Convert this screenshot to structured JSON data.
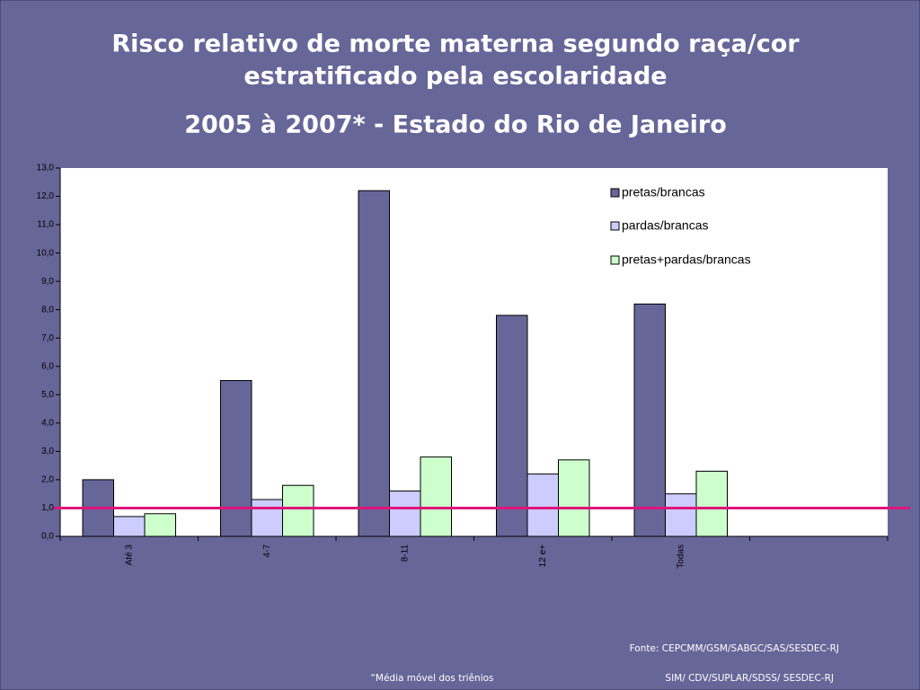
{
  "chart_data": {
    "type": "bar",
    "title": [
      "Risco relativo de morte materna segundo raça/cor",
      "estratificado pela escolaridade"
    ],
    "subtitle": "2005 à 2007* - Estado do Rio de Janeiro",
    "categories": [
      "Até 3",
      "4-7",
      "8-11",
      "12 e+",
      "Todas",
      null
    ],
    "series": [
      {
        "name": "pretas/brancas",
        "color": "#666699",
        "values": [
          2.0,
          5.5,
          12.2,
          7.8,
          8.2,
          null
        ]
      },
      {
        "name": "pardas/brancas",
        "color": "#ccccff",
        "values": [
          0.7,
          1.3,
          1.6,
          2.2,
          1.5,
          null
        ]
      },
      {
        "name": "pretas+pardas/brancas",
        "color": "#ccffcc",
        "values": [
          0.8,
          1.8,
          2.8,
          2.7,
          2.3,
          null
        ]
      }
    ],
    "reference_line": {
      "value": 1.0,
      "color": "#e0157a"
    },
    "ylim": [
      0,
      13
    ],
    "yticks": [
      {
        "value": 0,
        "label": "0,0"
      },
      {
        "value": 1,
        "label": "1,0"
      },
      {
        "value": 2,
        "label": "2,0"
      },
      {
        "value": 3,
        "label": "3,0"
      },
      {
        "value": 4,
        "label": "4,0"
      },
      {
        "value": 5,
        "label": "5,0"
      },
      {
        "value": 6,
        "label": "6,0"
      },
      {
        "value": 7,
        "label": "7,0"
      },
      {
        "value": 8,
        "label": "8,0"
      },
      {
        "value": 9,
        "label": "9,0"
      },
      {
        "value": 10,
        "label": "10,0"
      },
      {
        "value": 11,
        "label": "11,0"
      },
      {
        "value": 12,
        "label": "12,0"
      },
      {
        "value": 13,
        "label": "13,0"
      }
    ],
    "grid": false,
    "legend": "top-right",
    "source": "Fonte: CEPCMM/GSM/SABGC/SAS/SESDEC-RJ",
    "footnote": "“Média móvel dos triênios",
    "source2": "SIM/ CDV/SUPLAR/SDSS/ SESDEC-RJ"
  }
}
